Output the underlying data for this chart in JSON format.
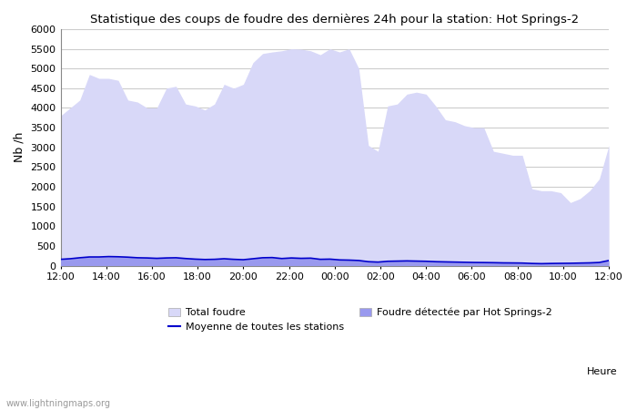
{
  "title": "Statistique des coups de foudre des dernières 24h pour la station: Hot Springs-2",
  "ylabel": "Nb /h",
  "xlabel": "Heure",
  "watermark": "www.lightningmaps.org",
  "x_ticks": [
    "12:00",
    "14:00",
    "16:00",
    "18:00",
    "20:00",
    "22:00",
    "00:00",
    "02:00",
    "04:00",
    "06:00",
    "08:00",
    "10:00",
    "12:00"
  ],
  "ylim": [
    0,
    6000
  ],
  "yticks": [
    0,
    500,
    1000,
    1500,
    2000,
    2500,
    3000,
    3500,
    4000,
    4500,
    5000,
    5500,
    6000
  ],
  "background_color": "#ffffff",
  "plot_bg_color": "#ffffff",
  "grid_color": "#cccccc",
  "fill_total_color": "#d8d8f8",
  "fill_detected_color": "#9999ee",
  "line_color": "#0000cc",
  "total_foudre": [
    3800,
    4000,
    4200,
    4850,
    4750,
    4750,
    4700,
    4200,
    4150,
    4000,
    4000,
    4500,
    4550,
    4100,
    4050,
    3950,
    4100,
    4600,
    4500,
    4600,
    5150,
    5380,
    5420,
    5450,
    5500,
    5490,
    5450,
    5350,
    5500,
    5420,
    5500,
    5000,
    3050,
    2900,
    4050,
    4100,
    4350,
    4400,
    4350,
    4050,
    3700,
    3650,
    3550,
    3500,
    3500,
    2900,
    2850,
    2800,
    2800,
    1950,
    1900,
    1900,
    1850,
    1600,
    1700,
    1900,
    2200,
    3050
  ],
  "detected_foudre": [
    160,
    175,
    200,
    220,
    220,
    230,
    225,
    215,
    200,
    195,
    185,
    195,
    200,
    180,
    165,
    155,
    160,
    175,
    160,
    150,
    175,
    200,
    205,
    180,
    195,
    185,
    190,
    160,
    165,
    145,
    140,
    130,
    100,
    90,
    110,
    115,
    120,
    115,
    110,
    100,
    95,
    90,
    85,
    80,
    78,
    75,
    70,
    68,
    65,
    55,
    50,
    55,
    58,
    60,
    65,
    70,
    80,
    130
  ],
  "moyenne": [
    160,
    175,
    200,
    220,
    220,
    230,
    225,
    215,
    200,
    195,
    185,
    195,
    200,
    180,
    165,
    155,
    160,
    175,
    160,
    150,
    175,
    200,
    205,
    180,
    195,
    185,
    190,
    160,
    165,
    145,
    140,
    130,
    100,
    90,
    110,
    115,
    120,
    115,
    110,
    100,
    95,
    90,
    85,
    80,
    78,
    75,
    70,
    68,
    65,
    55,
    50,
    55,
    58,
    60,
    65,
    70,
    80,
    130
  ],
  "n_points": 58,
  "legend_labels": [
    "Total foudre",
    "Moyenne de toutes les stations",
    "Foudre détectée par Hot Springs-2"
  ]
}
